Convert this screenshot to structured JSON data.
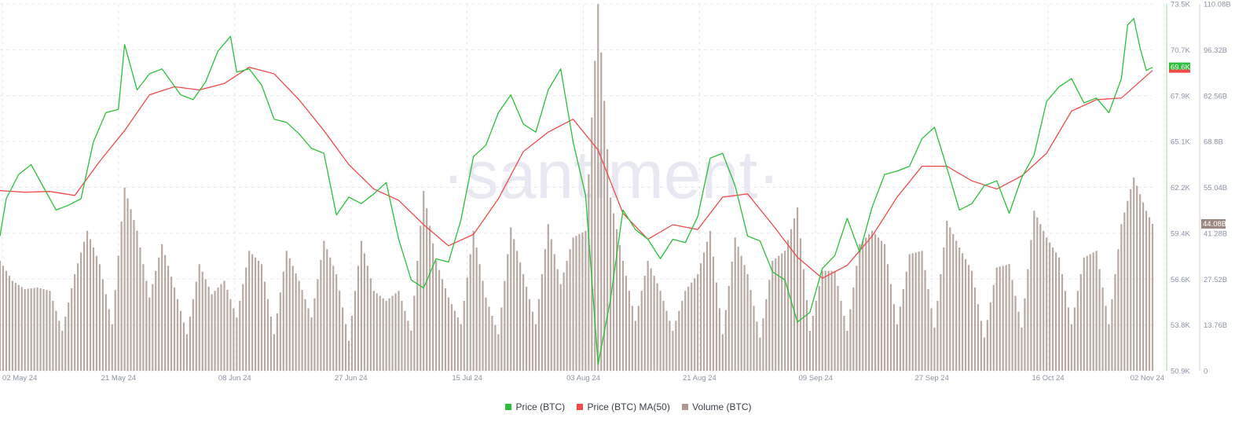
{
  "colors": {
    "price": "#2bc039",
    "ma": "#f04a4a",
    "volume": "#ad9a92",
    "grid": "#e6e9ef",
    "tick": "#8b93a7",
    "watermark": "#e7e8f2"
  },
  "watermark": "·santiment·",
  "chart_data": {
    "type": "line",
    "x_ticks": [
      "02 May 24",
      "21 May 24",
      "08 Jun 24",
      "27 Jun 24",
      "15 Jul 24",
      "03 Aug 24",
      "21 Aug 24",
      "09 Sep 24",
      "27 Sep 24",
      "16 Oct 24",
      "02 Nov 24"
    ],
    "price_axis_ticks": [
      "73.5K",
      "70.7K",
      "67.9K",
      "65.1K",
      "62.2K",
      "59.4K",
      "56.6K",
      "53.8K",
      "50.9K"
    ],
    "volume_axis_ticks": [
      "110.08B",
      "96.32B",
      "82.56B",
      "68.8B",
      "55.04B",
      "41.28B",
      "27.52B",
      "13.76B",
      "0"
    ],
    "price_ylim": [
      50900,
      73500
    ],
    "volume_ylim": [
      0,
      110080000000
    ],
    "current_price_label": "69.6K",
    "current_volume_label": "44.08B",
    "series": [
      {
        "name": "Price (BTC)",
        "axis": "left",
        "points": [
          [
            "2024-05-01",
            59200
          ],
          [
            "2024-05-02",
            61500
          ],
          [
            "2024-05-04",
            63000
          ],
          [
            "2024-05-06",
            63600
          ],
          [
            "2024-05-08",
            62200
          ],
          [
            "2024-05-10",
            60800
          ],
          [
            "2024-05-12",
            61100
          ],
          [
            "2024-05-14",
            61500
          ],
          [
            "2024-05-16",
            65000
          ],
          [
            "2024-05-18",
            66800
          ],
          [
            "2024-05-20",
            67000
          ],
          [
            "2024-05-21",
            71000
          ],
          [
            "2024-05-23",
            68200
          ],
          [
            "2024-05-25",
            69200
          ],
          [
            "2024-05-27",
            69500
          ],
          [
            "2024-05-30",
            67900
          ],
          [
            "2024-06-01",
            67600
          ],
          [
            "2024-06-03",
            68700
          ],
          [
            "2024-06-05",
            70600
          ],
          [
            "2024-06-07",
            71500
          ],
          [
            "2024-06-08",
            69300
          ],
          [
            "2024-06-10",
            69500
          ],
          [
            "2024-06-12",
            68500
          ],
          [
            "2024-06-14",
            66400
          ],
          [
            "2024-06-16",
            66200
          ],
          [
            "2024-06-18",
            65500
          ],
          [
            "2024-06-20",
            64600
          ],
          [
            "2024-06-22",
            64300
          ],
          [
            "2024-06-24",
            60500
          ],
          [
            "2024-06-26",
            61600
          ],
          [
            "2024-06-28",
            61200
          ],
          [
            "2024-06-30",
            61800
          ],
          [
            "2024-07-02",
            62500
          ],
          [
            "2024-07-04",
            59000
          ],
          [
            "2024-07-06",
            56500
          ],
          [
            "2024-07-08",
            56000
          ],
          [
            "2024-07-10",
            57800
          ],
          [
            "2024-07-12",
            57600
          ],
          [
            "2024-07-14",
            60200
          ],
          [
            "2024-07-16",
            64100
          ],
          [
            "2024-07-18",
            64800
          ],
          [
            "2024-07-20",
            66800
          ],
          [
            "2024-07-22",
            67900
          ],
          [
            "2024-07-24",
            66100
          ],
          [
            "2024-07-26",
            65600
          ],
          [
            "2024-07-28",
            68200
          ],
          [
            "2024-07-30",
            69500
          ],
          [
            "2024-08-01",
            65000
          ],
          [
            "2024-08-03",
            61700
          ],
          [
            "2024-08-05",
            51300
          ],
          [
            "2024-08-07",
            55300
          ],
          [
            "2024-08-09",
            60800
          ],
          [
            "2024-08-11",
            59600
          ],
          [
            "2024-08-13",
            59000
          ],
          [
            "2024-08-15",
            57800
          ],
          [
            "2024-08-17",
            59000
          ],
          [
            "2024-08-19",
            58800
          ],
          [
            "2024-08-21",
            60400
          ],
          [
            "2024-08-23",
            64000
          ],
          [
            "2024-08-25",
            64300
          ],
          [
            "2024-08-27",
            62300
          ],
          [
            "2024-08-29",
            59200
          ],
          [
            "2024-08-31",
            58900
          ],
          [
            "2024-09-02",
            57000
          ],
          [
            "2024-09-04",
            56500
          ],
          [
            "2024-09-06",
            53900
          ],
          [
            "2024-09-08",
            54500
          ],
          [
            "2024-09-10",
            57200
          ],
          [
            "2024-09-12",
            58000
          ],
          [
            "2024-09-14",
            60300
          ],
          [
            "2024-09-16",
            58200
          ],
          [
            "2024-09-18",
            61000
          ],
          [
            "2024-09-20",
            63000
          ],
          [
            "2024-09-22",
            63200
          ],
          [
            "2024-09-24",
            63500
          ],
          [
            "2024-09-26",
            65200
          ],
          [
            "2024-09-28",
            65900
          ],
          [
            "2024-09-30",
            63400
          ],
          [
            "2024-10-02",
            60800
          ],
          [
            "2024-10-04",
            61200
          ],
          [
            "2024-10-06",
            62300
          ],
          [
            "2024-10-08",
            62600
          ],
          [
            "2024-10-10",
            60600
          ],
          [
            "2024-10-12",
            62800
          ],
          [
            "2024-10-14",
            64200
          ],
          [
            "2024-10-16",
            67500
          ],
          [
            "2024-10-18",
            68400
          ],
          [
            "2024-10-20",
            68900
          ],
          [
            "2024-10-22",
            67400
          ],
          [
            "2024-10-24",
            67700
          ],
          [
            "2024-10-26",
            66800
          ],
          [
            "2024-10-28",
            68900
          ],
          [
            "2024-10-29",
            72200
          ],
          [
            "2024-10-30",
            72600
          ],
          [
            "2024-10-31",
            70800
          ],
          [
            "2024-11-01",
            69400
          ],
          [
            "2024-11-02",
            69600
          ]
        ]
      },
      {
        "name": "Price (BTC) MA(50)",
        "axis": "left",
        "points": [
          [
            "2024-05-01",
            62000
          ],
          [
            "2024-05-05",
            61900
          ],
          [
            "2024-05-09",
            61950
          ],
          [
            "2024-05-13",
            61700
          ],
          [
            "2024-05-17",
            63800
          ],
          [
            "2024-05-21",
            65700
          ],
          [
            "2024-05-25",
            67900
          ],
          [
            "2024-05-29",
            68400
          ],
          [
            "2024-06-02",
            68200
          ],
          [
            "2024-06-06",
            68600
          ],
          [
            "2024-06-10",
            69600
          ],
          [
            "2024-06-14",
            69200
          ],
          [
            "2024-06-18",
            67600
          ],
          [
            "2024-06-22",
            65700
          ],
          [
            "2024-06-26",
            63600
          ],
          [
            "2024-06-30",
            62100
          ],
          [
            "2024-07-04",
            61400
          ],
          [
            "2024-07-08",
            59900
          ],
          [
            "2024-07-12",
            58600
          ],
          [
            "2024-07-16",
            59300
          ],
          [
            "2024-07-20",
            61500
          ],
          [
            "2024-07-24",
            64400
          ],
          [
            "2024-07-28",
            65600
          ],
          [
            "2024-08-01",
            66400
          ],
          [
            "2024-08-05",
            64500
          ],
          [
            "2024-08-09",
            60600
          ],
          [
            "2024-08-13",
            59000
          ],
          [
            "2024-08-17",
            59900
          ],
          [
            "2024-08-21",
            59600
          ],
          [
            "2024-08-25",
            61600
          ],
          [
            "2024-08-29",
            61800
          ],
          [
            "2024-09-02",
            59900
          ],
          [
            "2024-09-06",
            57900
          ],
          [
            "2024-09-10",
            56600
          ],
          [
            "2024-09-14",
            57400
          ],
          [
            "2024-09-18",
            59200
          ],
          [
            "2024-09-22",
            61600
          ],
          [
            "2024-09-26",
            63500
          ],
          [
            "2024-09-30",
            63500
          ],
          [
            "2024-10-04",
            62600
          ],
          [
            "2024-10-08",
            62100
          ],
          [
            "2024-10-12",
            62900
          ],
          [
            "2024-10-16",
            64300
          ],
          [
            "2024-10-20",
            66900
          ],
          [
            "2024-10-24",
            67600
          ],
          [
            "2024-10-28",
            67700
          ],
          [
            "2024-11-02",
            69400
          ]
        ]
      },
      {
        "name": "Volume (BTC)",
        "axis": "right",
        "type": "bar",
        "points": [
          [
            "2024-05-01",
            33000000000
          ],
          [
            "2024-05-03",
            27000000000
          ],
          [
            "2024-05-05",
            24500000000
          ],
          [
            "2024-05-07",
            25000000000
          ],
          [
            "2024-05-09",
            24000000000
          ],
          [
            "2024-05-11",
            12000000000
          ],
          [
            "2024-05-13",
            29000000000
          ],
          [
            "2024-05-15",
            42000000000
          ],
          [
            "2024-05-17",
            32000000000
          ],
          [
            "2024-05-19",
            14000000000
          ],
          [
            "2024-05-21",
            55000000000
          ],
          [
            "2024-05-23",
            42000000000
          ],
          [
            "2024-05-25",
            22000000000
          ],
          [
            "2024-05-27",
            38000000000
          ],
          [
            "2024-05-29",
            25000000000
          ],
          [
            "2024-05-31",
            11000000000
          ],
          [
            "2024-06-02",
            32000000000
          ],
          [
            "2024-06-04",
            23000000000
          ],
          [
            "2024-06-06",
            27000000000
          ],
          [
            "2024-06-08",
            16000000000
          ],
          [
            "2024-06-10",
            36000000000
          ],
          [
            "2024-06-12",
            32000000000
          ],
          [
            "2024-06-14",
            11000000000
          ],
          [
            "2024-06-16",
            36000000000
          ],
          [
            "2024-06-18",
            27000000000
          ],
          [
            "2024-06-20",
            16000000000
          ],
          [
            "2024-06-22",
            39000000000
          ],
          [
            "2024-06-24",
            29000000000
          ],
          [
            "2024-06-26",
            9000000000
          ],
          [
            "2024-06-28",
            39000000000
          ],
          [
            "2024-06-30",
            24000000000
          ],
          [
            "2024-07-02",
            21000000000
          ],
          [
            "2024-07-04",
            24000000000
          ],
          [
            "2024-07-06",
            12000000000
          ],
          [
            "2024-07-08",
            54000000000
          ],
          [
            "2024-07-10",
            33000000000
          ],
          [
            "2024-07-12",
            22000000000
          ],
          [
            "2024-07-14",
            14000000000
          ],
          [
            "2024-07-16",
            42000000000
          ],
          [
            "2024-07-18",
            22000000000
          ],
          [
            "2024-07-20",
            11000000000
          ],
          [
            "2024-07-22",
            43000000000
          ],
          [
            "2024-07-24",
            29000000000
          ],
          [
            "2024-07-26",
            14000000000
          ],
          [
            "2024-07-28",
            44000000000
          ],
          [
            "2024-07-30",
            26000000000
          ],
          [
            "2024-08-01",
            40000000000
          ],
          [
            "2024-08-03",
            42000000000
          ],
          [
            "2024-08-05",
            110000000000
          ],
          [
            "2024-08-07",
            52000000000
          ],
          [
            "2024-08-09",
            33000000000
          ],
          [
            "2024-08-11",
            15000000000
          ],
          [
            "2024-08-13",
            33000000000
          ],
          [
            "2024-08-15",
            24000000000
          ],
          [
            "2024-08-17",
            12000000000
          ],
          [
            "2024-08-19",
            24000000000
          ],
          [
            "2024-08-21",
            29000000000
          ],
          [
            "2024-08-23",
            42000000000
          ],
          [
            "2024-08-25",
            11000000000
          ],
          [
            "2024-08-27",
            40000000000
          ],
          [
            "2024-08-29",
            29000000000
          ],
          [
            "2024-08-31",
            10000000000
          ],
          [
            "2024-09-02",
            33000000000
          ],
          [
            "2024-09-04",
            36000000000
          ],
          [
            "2024-09-06",
            49000000000
          ],
          [
            "2024-09-08",
            12000000000
          ],
          [
            "2024-09-10",
            30000000000
          ],
          [
            "2024-09-12",
            30000000000
          ],
          [
            "2024-09-14",
            12000000000
          ],
          [
            "2024-09-16",
            38000000000
          ],
          [
            "2024-09-18",
            42000000000
          ],
          [
            "2024-09-20",
            38000000000
          ],
          [
            "2024-09-22",
            14000000000
          ],
          [
            "2024-09-24",
            35000000000
          ],
          [
            "2024-09-26",
            36000000000
          ],
          [
            "2024-09-28",
            13000000000
          ],
          [
            "2024-09-30",
            45000000000
          ],
          [
            "2024-10-02",
            37000000000
          ],
          [
            "2024-10-04",
            30000000000
          ],
          [
            "2024-10-06",
            10000000000
          ],
          [
            "2024-10-08",
            31000000000
          ],
          [
            "2024-10-10",
            32000000000
          ],
          [
            "2024-10-12",
            13000000000
          ],
          [
            "2024-10-14",
            48000000000
          ],
          [
            "2024-10-16",
            40000000000
          ],
          [
            "2024-10-18",
            34000000000
          ],
          [
            "2024-10-20",
            14000000000
          ],
          [
            "2024-10-22",
            34000000000
          ],
          [
            "2024-10-24",
            36000000000
          ],
          [
            "2024-10-26",
            14000000000
          ],
          [
            "2024-10-28",
            44000000000
          ],
          [
            "2024-10-30",
            58000000000
          ],
          [
            "2024-11-01",
            48000000000
          ],
          [
            "2024-11-02",
            44080000000
          ]
        ]
      }
    ]
  },
  "legend": [
    {
      "label": "Price (BTC)",
      "color": "#2bc039"
    },
    {
      "label": "Price (BTC) MA(50)",
      "color": "#f04a4a"
    },
    {
      "label": "Volume (BTC)",
      "color": "#ad9a92"
    }
  ]
}
